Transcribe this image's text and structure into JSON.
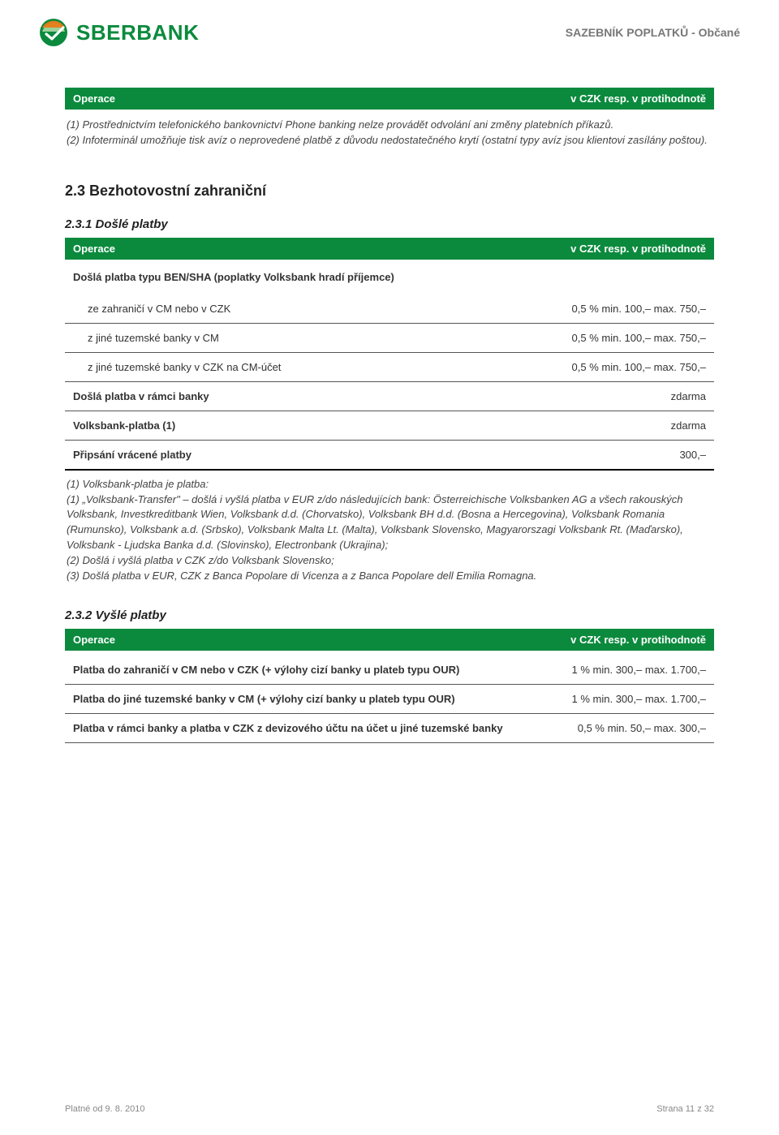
{
  "header": {
    "brand": "SBERBANK",
    "right_text": "SAZEBNÍK POPLATKŮ - Občané",
    "logo_colors": {
      "green": "#0b8a3d",
      "orange": "#e97c1a",
      "light": "#9bd19b"
    }
  },
  "section1": {
    "table_left": "Operace",
    "table_right": "v CZK resp. v protihodnotě",
    "notes": "(1)  Prostřednictvím telefonického bankovnictví Phone banking nelze provádět odvolání ani změny platebních příkazů.\n(2)  Infoterminál umožňuje tisk avíz o neprovedené platbě z důvodu nedostatečného krytí (ostatní typy avíz jsou klientovi zasílány poštou)."
  },
  "section2": {
    "heading": "2.3 Bezhotovostní zahraniční",
    "sub_heading": "2.3.1 Došlé platby",
    "table_left": "Operace",
    "table_right": "v CZK resp. v protihodnotě",
    "group_label": "Došlá platba typu BEN/SHA (poplatky Volksbank hradí příjemce)",
    "rows": [
      {
        "label": "ze zahraničí v CM nebo v CZK",
        "value": "0,5 % min. 100,– max. 750,–",
        "indent": true
      },
      {
        "label": "z jiné tuzemské banky v CM",
        "value": "0,5 % min. 100,– max. 750,–",
        "indent": true
      },
      {
        "label": "z jiné tuzemské banky v CZK na CM-účet",
        "value": "0,5 % min. 100,– max. 750,–",
        "indent": true
      },
      {
        "label": "Došlá platba v rámci banky",
        "value": "zdarma",
        "bold": true
      },
      {
        "label": "Volksbank-platba (1)",
        "value": "zdarma",
        "bold": true
      },
      {
        "label": "Připsání vrácené platby",
        "value": "300,–",
        "bold": true,
        "last": true
      }
    ],
    "footnote": "(1)  Volksbank-platba je platba:\n(1) „Volksbank-Transfer\" – došlá i vyšlá platba v EUR z/do následujících bank: Österreichische Volksbanken AG a všech rakouských Volksbank, Investkreditbank Wien, Volksbank d.d. (Chorvatsko), Volksbank BH d.d. (Bosna a Hercegovina), Volksbank Romania (Rumunsko), Volksbank a.d. (Srbsko), Volksbank Malta Lt. (Malta), Volksbank Slovensko, Magyarorszagi Volksbank Rt. (Maďarsko), Volksbank - Ljudska Banka d.d. (Slovinsko), Electronbank (Ukrajina);\n(2) Došlá i vyšlá platba v CZK z/do Volksbank Slovensko;\n(3) Došlá platba v EUR, CZK z Banca Popolare di Vicenza a z Banca Popolare dell Emilia Romagna."
  },
  "section3": {
    "sub_heading": "2.3.2 Vyšlé platby",
    "table_left": "Operace",
    "table_right": "v CZK resp. v protihodnotě",
    "rows": [
      {
        "label": "Platba do zahraničí v CM nebo v CZK (+ výlohy cizí banky u plateb typu OUR)",
        "value": "1 % min. 300,– max. 1.700,–",
        "bold": true
      },
      {
        "label": "Platba do jiné tuzemské banky v CM (+ výlohy cizí banky u plateb typu OUR)",
        "value": "1 % min. 300,– max. 1.700,–",
        "bold": true
      },
      {
        "label": "Platba v rámci banky a platba v CZK z devizového účtu na účet u jiné tuzemské banky",
        "value": "0,5 % min. 50,– max. 300,–",
        "bold": true
      }
    ]
  },
  "footer": {
    "left": "Platné od 9. 8. 2010",
    "right": "Strana 11 z 32"
  },
  "colors": {
    "brand_green": "#0b8a3d",
    "text": "#333333",
    "muted": "#777777",
    "border": "#555555"
  }
}
